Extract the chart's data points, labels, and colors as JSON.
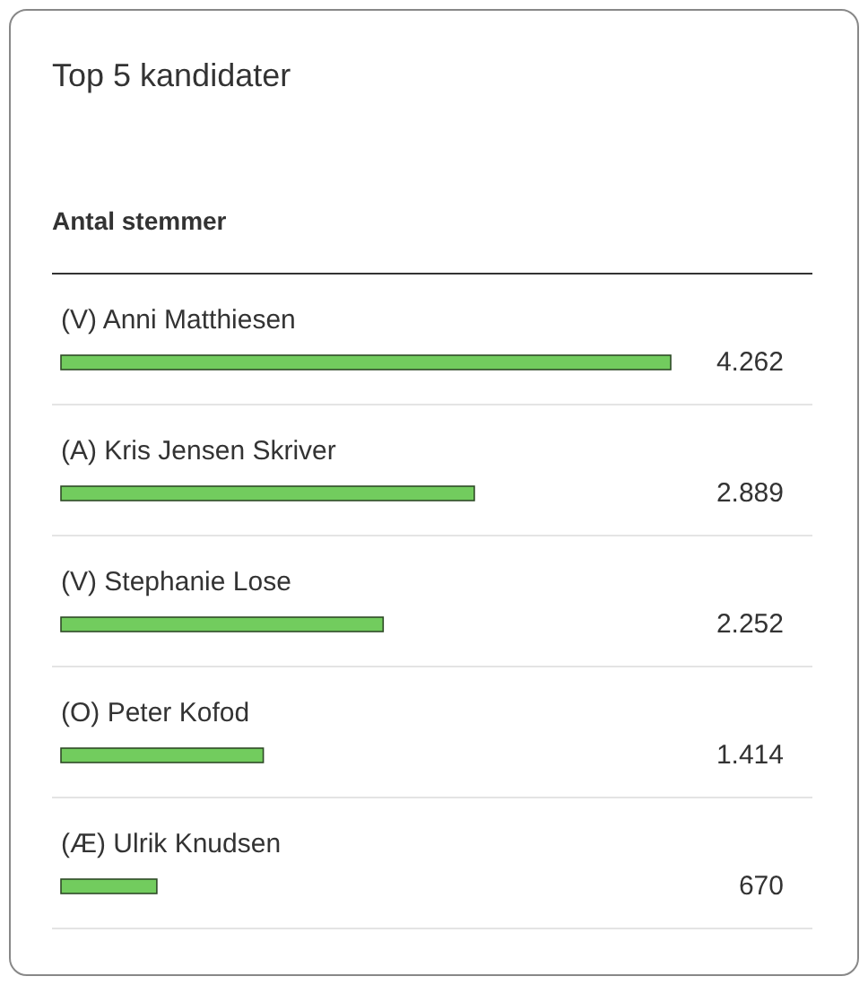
{
  "chart_data": {
    "type": "bar",
    "orientation": "horizontal",
    "title": "Top 5 kandidater",
    "xlabel": "Antal stemmer",
    "categories": [
      "(V) Anni Matthiesen",
      "(A) Kris Jensen Skriver",
      "(V) Stephanie Lose",
      "(O) Peter Kofod",
      "(Æ) Ulrik Knudsen"
    ],
    "values": [
      4262,
      2889,
      2252,
      1414,
      670
    ],
    "value_labels": [
      "4.262",
      "2.889",
      "2.252",
      "1.414",
      "670"
    ],
    "color": "#72cc5e",
    "legend": false,
    "grid": false
  }
}
